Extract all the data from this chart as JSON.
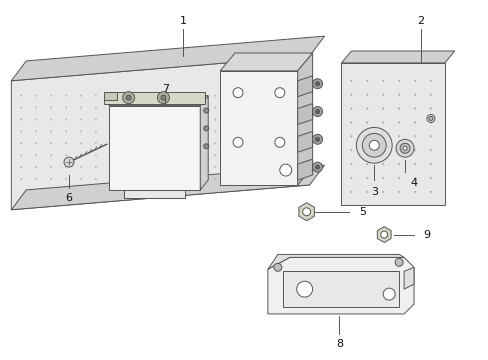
{
  "background_color": "#ffffff",
  "fig_width": 4.89,
  "fig_height": 3.6,
  "dpi": 100,
  "line_color": "#555555",
  "text_color": "#111111",
  "plate_face": "#e8e8e8",
  "plate_top": "#d0d0d0",
  "plate_right": "#c0c0c0",
  "box_face": "#f2f2f2",
  "box_top": "#d8d8d8",
  "box_right": "#c8c8c8",
  "ecm_face": "#f5f5f5",
  "ecm_top": "#e0e0e0",
  "ecm_right": "#d0d0d0",
  "plate2_face": "#e8e8e8",
  "brk_face": "#f0f0f0",
  "brk_top": "#e0e0e0"
}
